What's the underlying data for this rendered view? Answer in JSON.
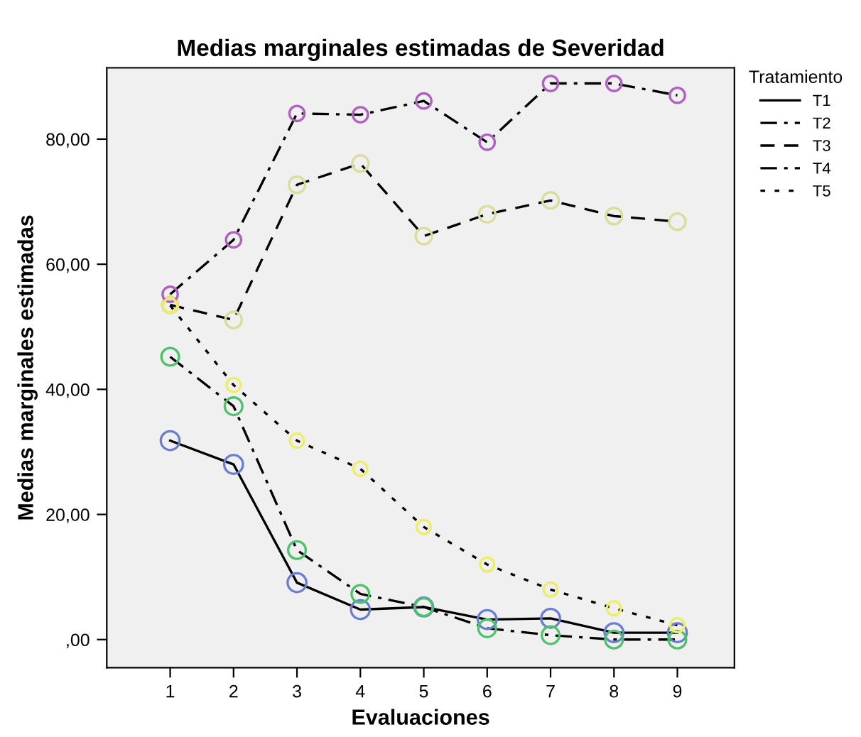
{
  "chart_data": {
    "type": "line",
    "title": "Medias marginales estimadas de Severidad",
    "xlabel": "Evaluaciones",
    "ylabel": "Medias marginales estimadas",
    "legend_title": "Tratamiento",
    "x": [
      1,
      2,
      3,
      4,
      5,
      6,
      7,
      8,
      9
    ],
    "series": [
      {
        "name": "T1",
        "color": "#6b7fd0",
        "line_style": "solid",
        "values": [
          31.8,
          28.0,
          9.1,
          4.8,
          5.2,
          3.2,
          3.4,
          1.1,
          1.1
        ]
      },
      {
        "name": "T2",
        "color": "#4cc36a",
        "line_style": "dashdot",
        "values": [
          45.2,
          37.3,
          14.3,
          7.3,
          5.2,
          1.8,
          0.7,
          0.0,
          0.0
        ]
      },
      {
        "name": "T3",
        "color": "#dcdc9c",
        "line_style": "dashed",
        "values": [
          53.5,
          51.1,
          72.7,
          76.1,
          64.5,
          68.0,
          70.2,
          67.7,
          66.8
        ]
      },
      {
        "name": "T4",
        "color": "#b060c0",
        "line_style": "dashdot",
        "values": [
          55.2,
          63.9,
          84.1,
          83.9,
          86.1,
          79.5,
          88.9,
          88.9,
          87.0
        ]
      },
      {
        "name": "T5",
        "color": "#eeee66",
        "line_style": "dotted",
        "values": [
          53.4,
          40.7,
          31.8,
          27.3,
          18.0,
          12.0,
          8.0,
          5.0,
          2.3
        ]
      }
    ],
    "xlim": [
      0,
      9.9
    ],
    "xticks": [
      1,
      2,
      3,
      4,
      5,
      6,
      7,
      8,
      9
    ],
    "ylim": [
      -4.5,
      91.4
    ],
    "yticks": [
      {
        "value": 0,
        "label": ",00"
      },
      {
        "value": 20,
        "label": "20,00"
      },
      {
        "value": 40,
        "label": "40,00"
      },
      {
        "value": 60,
        "label": "60,00"
      },
      {
        "value": 80,
        "label": "80,00"
      }
    ],
    "marker": "circle",
    "grid": false,
    "legend": "top right"
  }
}
